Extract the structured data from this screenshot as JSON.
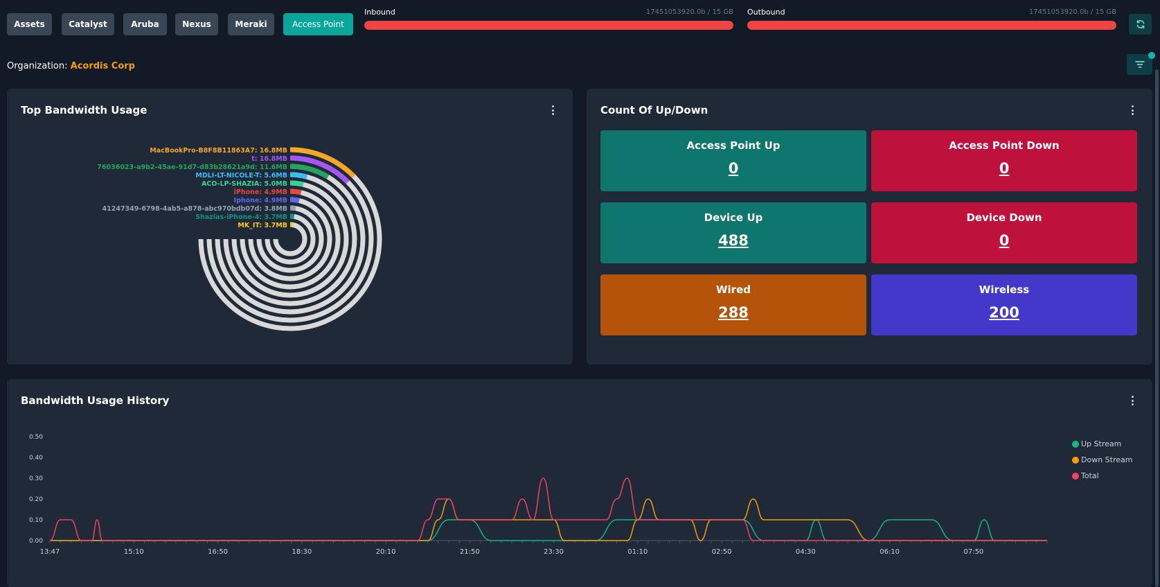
{
  "tabs": [
    {
      "label": "Assets",
      "active": false
    },
    {
      "label": "Catalyst",
      "active": false
    },
    {
      "label": "Aruba",
      "active": false
    },
    {
      "label": "Nexus",
      "active": false
    },
    {
      "label": "Meraki",
      "active": false
    },
    {
      "label": "Access Point",
      "active": true
    }
  ],
  "inbound": {
    "label": "Inbound",
    "value": "17451053920.0b / 15 GB",
    "fill_fraction": 1.0,
    "color": "#ef4444"
  },
  "outbound": {
    "label": "Outbound",
    "value": "17451053920.0b / 15 GB",
    "fill_fraction": 1.0,
    "color": "#ef4444"
  },
  "refresh_icon": "refresh-icon",
  "filter_icon": "filter-icon",
  "organization": {
    "label": "Organization:",
    "name": "Acordis Corp"
  },
  "bandwidth": {
    "title": "Top Bandwidth Usage",
    "chart_data": {
      "type": "radial-bar",
      "max": 100,
      "series": [
        {
          "label": "MacBookPro-B8F8B11863A7: 16.8MB",
          "value": 16.8,
          "color": "#f5a623"
        },
        {
          "label": "t: 16.8MB",
          "value": 16.8,
          "color": "#a855f7"
        },
        {
          "label": "76036023-a9b2-45ae-91d7-d83b28621a9d: 11.6MB",
          "value": 11.6,
          "color": "#22a55e"
        },
        {
          "label": "MDLI-LT-NICOLE-T: 5.6MB",
          "value": 5.6,
          "color": "#38bdf8"
        },
        {
          "label": "ACO-LP-SHAZIA: 5.0MB",
          "value": 5.0,
          "color": "#34d399"
        },
        {
          "label": "iPhone: 4.9MB",
          "value": 4.9,
          "color": "#ef4444"
        },
        {
          "label": "Iphone: 4.9MB",
          "value": 4.9,
          "color": "#6366f1"
        },
        {
          "label": "41247349-6798-4ab5-a878-abc970bdb07d: 3.8MB",
          "value": 3.8,
          "color": "#94a3b8"
        },
        {
          "label": "Shazias-iPhone-4: 3.7MB",
          "value": 3.7,
          "color": "#0d9488"
        },
        {
          "label": "MK_IT: 3.7MB",
          "value": 3.7,
          "color": "#facc15"
        }
      ],
      "track_color": "#d9d9d9"
    }
  },
  "updown": {
    "title": "Count Of Up/Down",
    "tiles": [
      {
        "label": "Access Point Up",
        "value": "0",
        "color": "#0f766e"
      },
      {
        "label": "Access Point Down",
        "value": "0",
        "color": "#be123c"
      },
      {
        "label": "Device Up",
        "value": "488",
        "color": "#0f766e"
      },
      {
        "label": "Device Down",
        "value": "0",
        "color": "#be123c"
      },
      {
        "label": "Wired",
        "value": "288",
        "color": "#b45309"
      },
      {
        "label": "Wireless",
        "value": "200",
        "color": "#4338ca"
      }
    ]
  },
  "history": {
    "title": "Bandwidth Usage History",
    "chart_data": {
      "type": "line",
      "x": [
        "13:47",
        "15:10",
        "16:50",
        "18:30",
        "20:10",
        "21:50",
        "23:30",
        "01:10",
        "02:50",
        "04:30",
        "06:10",
        "07:50"
      ],
      "ylim": [
        0,
        0.5
      ],
      "yticks": [
        "0.00",
        "0.10",
        "0.20",
        "0.30",
        "0.40",
        "0.50"
      ],
      "series": [
        {
          "name": "Up Stream",
          "color": "#10b981",
          "points": [
            [
              0,
              0
            ],
            [
              36,
              0
            ],
            [
              38,
              0.1
            ],
            [
              40,
              0.1
            ],
            [
              42,
              0
            ],
            [
              52,
              0
            ],
            [
              54,
              0.1
            ],
            [
              66,
              0.1
            ],
            [
              68,
              0
            ],
            [
              72,
              0
            ],
            [
              73,
              0.1
            ],
            [
              74,
              0
            ],
            [
              78,
              0
            ],
            [
              80,
              0.1
            ],
            [
              84,
              0.1
            ],
            [
              86,
              0
            ],
            [
              88,
              0
            ],
            [
              89,
              0.1
            ],
            [
              90,
              0
            ],
            [
              95,
              0
            ]
          ]
        },
        {
          "name": "Down Stream",
          "color": "#f59e0b",
          "points": [
            [
              0,
              0
            ],
            [
              36,
              0
            ],
            [
              37,
              0.1
            ],
            [
              38,
              0.2
            ],
            [
              39,
              0.1
            ],
            [
              48,
              0.1
            ],
            [
              49,
              0
            ],
            [
              55,
              0
            ],
            [
              56,
              0.1
            ],
            [
              57,
              0.2
            ],
            [
              58,
              0.1
            ],
            [
              61,
              0.1
            ],
            [
              62,
              0
            ],
            [
              63,
              0.1
            ],
            [
              66,
              0.1
            ],
            [
              67,
              0.2
            ],
            [
              68,
              0.1
            ],
            [
              76,
              0.1
            ],
            [
              78,
              0
            ],
            [
              95,
              0
            ]
          ]
        },
        {
          "name": "Total",
          "color": "#f43f5e",
          "points": [
            [
              0,
              0
            ],
            [
              1,
              0.1
            ],
            [
              2,
              0.1
            ],
            [
              3,
              0
            ],
            [
              4,
              0
            ],
            [
              4.5,
              0.1
            ],
            [
              5,
              0
            ],
            [
              35,
              0
            ],
            [
              36,
              0.1
            ],
            [
              37,
              0.2
            ],
            [
              38,
              0.2
            ],
            [
              39,
              0.1
            ],
            [
              44,
              0.1
            ],
            [
              45,
              0.2
            ],
            [
              46,
              0.1
            ],
            [
              47,
              0.3
            ],
            [
              48,
              0.1
            ],
            [
              53,
              0.1
            ],
            [
              54,
              0.2
            ],
            [
              55,
              0.3
            ],
            [
              56,
              0.1
            ],
            [
              66,
              0.1
            ],
            [
              67,
              0
            ],
            [
              95,
              0
            ]
          ]
        }
      ],
      "legend_position": "top-right"
    }
  }
}
